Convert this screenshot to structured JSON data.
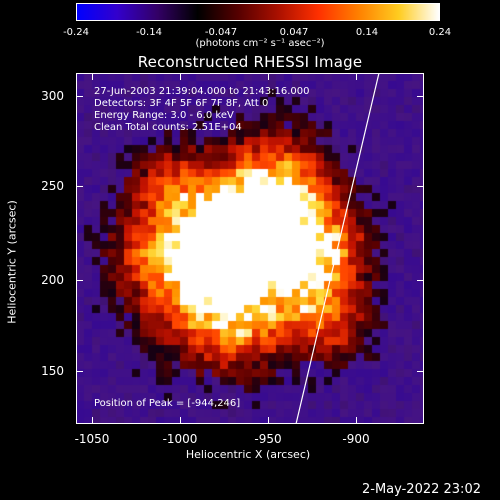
{
  "title": "Reconstructed RHESSI Image",
  "colorbar": {
    "ticks": [
      "-0.24",
      "-0.14",
      "-0.047",
      "0.047",
      "0.14",
      "0.24"
    ],
    "units": "(photons cm⁻² s⁻¹ asec⁻²)",
    "range": [
      -0.24,
      0.24
    ],
    "colormap_stops": [
      "#0000ff",
      "#3300cc",
      "#330066",
      "#000000",
      "#550000",
      "#aa1000",
      "#ff3000",
      "#ff8000",
      "#ffcc20",
      "#ffffff"
    ]
  },
  "info": {
    "line1": "27-Jun-2003 21:39:04.000 to 21:43:16.000",
    "line2": "Detectors: 3F 4F 5F 6F 7F 8F, Att 0",
    "line3": "Energy Range: 3.0 - 6.0 keV",
    "line4": "Clean     Total counts: 2.51E+04"
  },
  "peak_label": "Position of Peak = [-944,246]",
  "axes": {
    "xlabel": "Heliocentric X (arcsec)",
    "ylabel": "Heliocentric Y (arcsec)",
    "xticks": [
      "-1050",
      "-1000",
      "-950",
      "-900"
    ],
    "yticks": [
      "300",
      "250",
      "200",
      "150"
    ],
    "xlim": [
      -1064,
      -866
    ],
    "ylim": [
      117,
      313
    ]
  },
  "timestamp": "2-May-2022 23:02"
}
